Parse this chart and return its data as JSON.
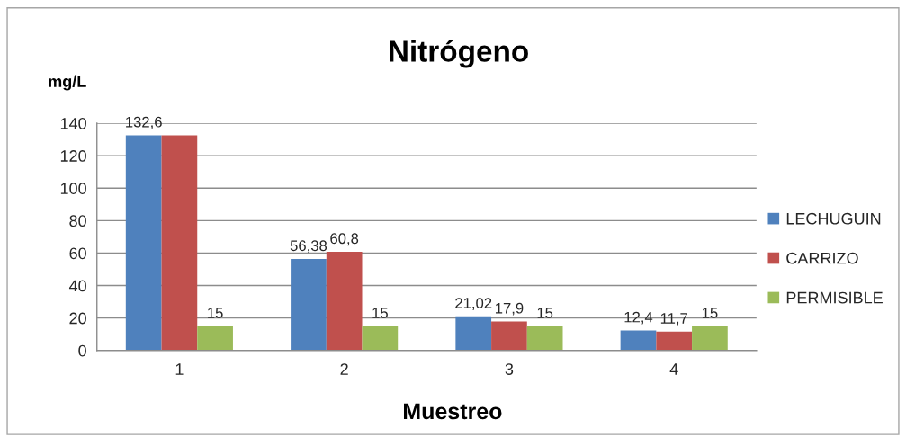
{
  "chart_data": {
    "type": "bar",
    "title": "Nitrógeno",
    "xlabel": "Muestreo",
    "ylabel": "mg/L",
    "categories": [
      "1",
      "2",
      "3",
      "4"
    ],
    "series": [
      {
        "name": "LECHUGUIN",
        "color": "#4f81bd",
        "values": [
          132.6,
          56.38,
          21.02,
          12.4
        ],
        "value_labels": [
          "132,6",
          "56,38",
          "21,02",
          "12,4"
        ]
      },
      {
        "name": "CARRIZO",
        "color": "#c0504d",
        "values": [
          132.6,
          60.8,
          17.9,
          11.7
        ],
        "value_labels": [
          null,
          "60,8",
          "17,9",
          "11,7"
        ]
      },
      {
        "name": "PERMISIBLE",
        "color": "#9bbb59",
        "values": [
          15,
          15,
          15,
          15
        ],
        "value_labels": [
          "15",
          "15",
          "15",
          "15"
        ]
      }
    ],
    "ylim": [
      0,
      140
    ],
    "yticks": [
      0,
      20,
      40,
      60,
      80,
      100,
      120,
      140
    ],
    "grid": "y",
    "legend": "right"
  }
}
